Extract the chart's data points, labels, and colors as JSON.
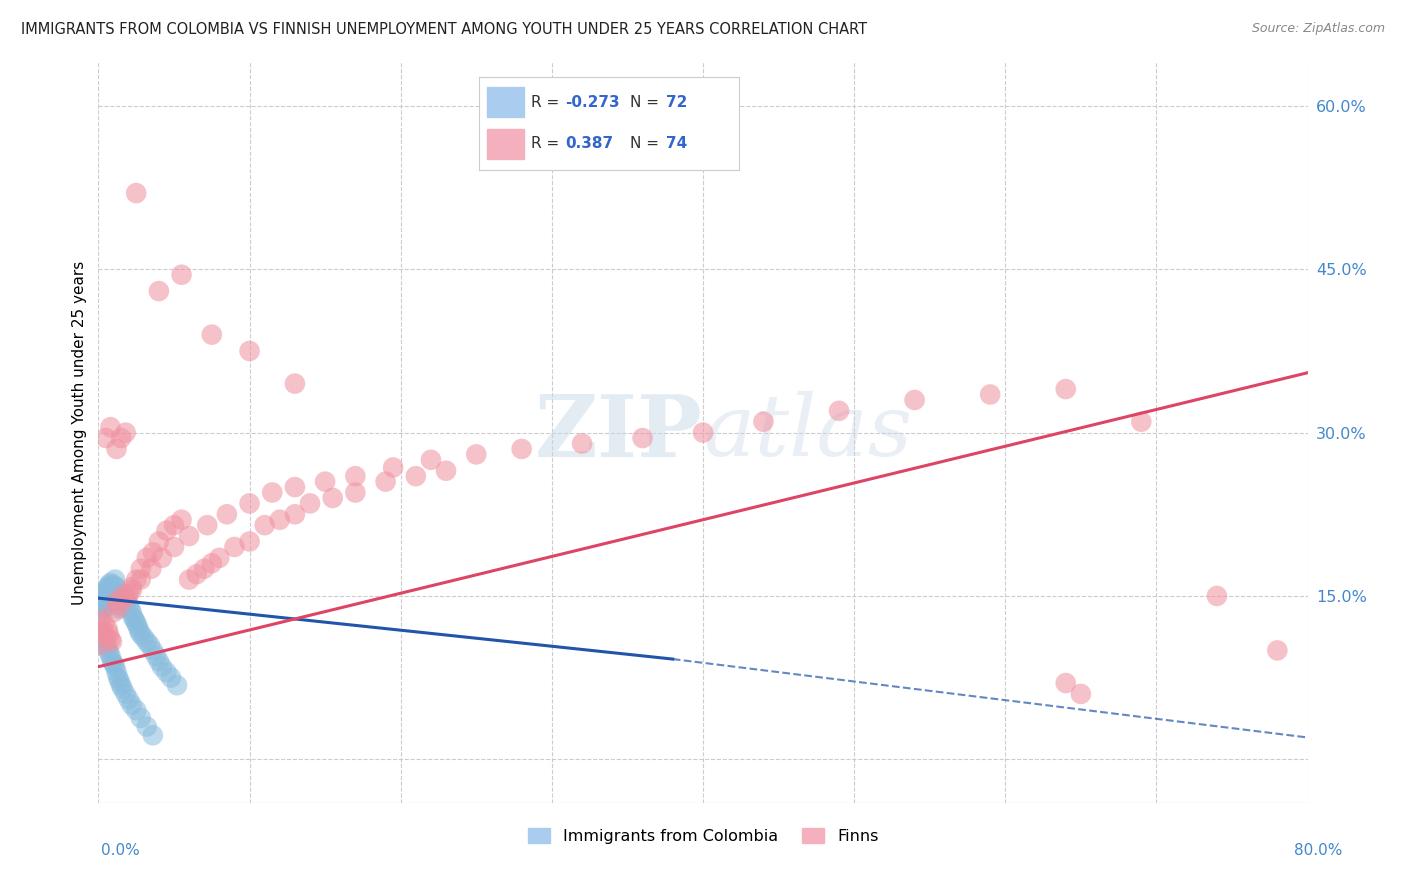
{
  "title": "IMMIGRANTS FROM COLOMBIA VS FINNISH UNEMPLOYMENT AMONG YOUTH UNDER 25 YEARS CORRELATION CHART",
  "source": "Source: ZipAtlas.com",
  "ylabel": "Unemployment Among Youth under 25 years",
  "legend_label1": "Immigrants from Colombia",
  "legend_label2": "Finns",
  "blue_dot_color": "#88bbdd",
  "pink_dot_color": "#f090a0",
  "blue_line_color": "#2255aa",
  "pink_line_color": "#dd4466",
  "xlim": [
    0.0,
    0.8
  ],
  "ylim": [
    -0.04,
    0.64
  ],
  "ytick_positions": [
    0.0,
    0.15,
    0.3,
    0.45,
    0.6
  ],
  "colombia_x": [
    0.001,
    0.002,
    0.002,
    0.003,
    0.003,
    0.004,
    0.004,
    0.005,
    0.005,
    0.006,
    0.006,
    0.007,
    0.007,
    0.008,
    0.008,
    0.009,
    0.009,
    0.01,
    0.01,
    0.011,
    0.011,
    0.012,
    0.012,
    0.013,
    0.013,
    0.014,
    0.015,
    0.016,
    0.017,
    0.018,
    0.019,
    0.02,
    0.021,
    0.022,
    0.023,
    0.024,
    0.025,
    0.026,
    0.027,
    0.028,
    0.03,
    0.032,
    0.034,
    0.036,
    0.038,
    0.04,
    0.042,
    0.045,
    0.048,
    0.052,
    0.002,
    0.003,
    0.004,
    0.005,
    0.006,
    0.007,
    0.008,
    0.009,
    0.01,
    0.011,
    0.012,
    0.013,
    0.014,
    0.015,
    0.016,
    0.018,
    0.02,
    0.022,
    0.025,
    0.028,
    0.032,
    0.036
  ],
  "colombia_y": [
    0.145,
    0.15,
    0.135,
    0.148,
    0.138,
    0.152,
    0.142,
    0.155,
    0.14,
    0.158,
    0.145,
    0.16,
    0.148,
    0.162,
    0.15,
    0.155,
    0.145,
    0.16,
    0.148,
    0.165,
    0.152,
    0.158,
    0.145,
    0.15,
    0.142,
    0.138,
    0.145,
    0.148,
    0.152,
    0.148,
    0.145,
    0.142,
    0.138,
    0.135,
    0.13,
    0.128,
    0.125,
    0.122,
    0.118,
    0.115,
    0.112,
    0.108,
    0.105,
    0.1,
    0.095,
    0.09,
    0.085,
    0.08,
    0.075,
    0.068,
    0.118,
    0.112,
    0.108,
    0.105,
    0.102,
    0.098,
    0.095,
    0.09,
    0.088,
    0.085,
    0.08,
    0.075,
    0.072,
    0.068,
    0.065,
    0.06,
    0.055,
    0.05,
    0.045,
    0.038,
    0.03,
    0.022
  ],
  "finns_x": [
    0.001,
    0.002,
    0.003,
    0.004,
    0.005,
    0.006,
    0.007,
    0.008,
    0.009,
    0.01,
    0.012,
    0.014,
    0.016,
    0.018,
    0.02,
    0.022,
    0.025,
    0.028,
    0.032,
    0.036,
    0.04,
    0.045,
    0.05,
    0.055,
    0.06,
    0.065,
    0.07,
    0.075,
    0.08,
    0.09,
    0.1,
    0.11,
    0.12,
    0.13,
    0.14,
    0.155,
    0.17,
    0.19,
    0.21,
    0.23,
    0.005,
    0.008,
    0.012,
    0.015,
    0.018,
    0.022,
    0.028,
    0.035,
    0.042,
    0.05,
    0.06,
    0.072,
    0.085,
    0.1,
    0.115,
    0.13,
    0.15,
    0.17,
    0.195,
    0.22,
    0.25,
    0.28,
    0.32,
    0.36,
    0.4,
    0.44,
    0.49,
    0.54,
    0.59,
    0.64,
    0.69,
    0.74,
    0.78,
    0.65
  ],
  "finns_y": [
    0.105,
    0.128,
    0.118,
    0.125,
    0.112,
    0.12,
    0.115,
    0.11,
    0.108,
    0.135,
    0.145,
    0.14,
    0.15,
    0.148,
    0.152,
    0.158,
    0.165,
    0.175,
    0.185,
    0.19,
    0.2,
    0.21,
    0.215,
    0.22,
    0.165,
    0.17,
    0.175,
    0.18,
    0.185,
    0.195,
    0.2,
    0.215,
    0.22,
    0.225,
    0.235,
    0.24,
    0.245,
    0.255,
    0.26,
    0.265,
    0.295,
    0.305,
    0.285,
    0.295,
    0.3,
    0.155,
    0.165,
    0.175,
    0.185,
    0.195,
    0.205,
    0.215,
    0.225,
    0.235,
    0.245,
    0.25,
    0.255,
    0.26,
    0.268,
    0.275,
    0.28,
    0.285,
    0.29,
    0.295,
    0.3,
    0.31,
    0.32,
    0.33,
    0.335,
    0.34,
    0.31,
    0.15,
    0.1,
    0.06
  ],
  "finns_outliers_x": [
    0.025,
    0.04,
    0.055,
    0.075,
    0.1,
    0.13,
    0.64
  ],
  "finns_outliers_y": [
    0.52,
    0.43,
    0.445,
    0.39,
    0.375,
    0.345,
    0.07
  ]
}
